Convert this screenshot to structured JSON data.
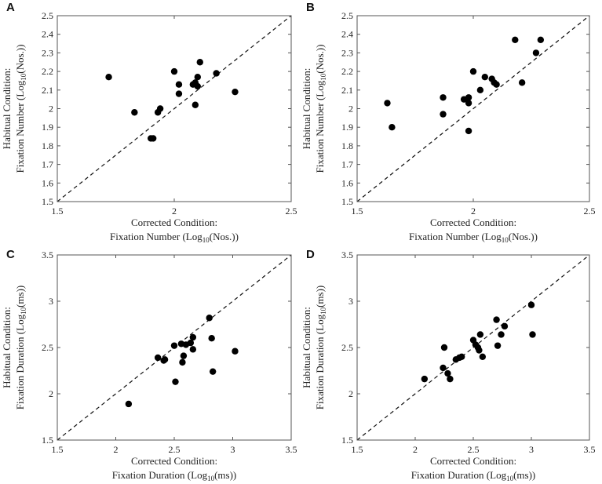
{
  "chart_data": [
    {
      "type": "scatter",
      "panel": "A",
      "xlabel_line1": "Corrected Condition:",
      "xlabel_line2": {
        "pre": "Fixation Number (Log",
        "sub": "10",
        "post": "(Nos.))"
      },
      "ylabel_line1": "Habitual Condition:",
      "ylabel_line2": {
        "pre": "Fixation Number (Log",
        "sub": "10",
        "post": "(Nos.))"
      },
      "xlim": [
        1.5,
        2.5
      ],
      "ylim": [
        1.5,
        2.5
      ],
      "xticks": [
        "1.5",
        "2",
        "2.5"
      ],
      "yticks": [
        "1.5",
        "1.6",
        "1.7",
        "1.8",
        "1.9",
        "2",
        "2.1",
        "2.2",
        "2.3",
        "2.4",
        "2.5"
      ],
      "identity_line": true,
      "points": [
        {
          "x": 1.72,
          "y": 2.17
        },
        {
          "x": 1.83,
          "y": 1.98
        },
        {
          "x": 1.9,
          "y": 1.84
        },
        {
          "x": 1.91,
          "y": 1.84
        },
        {
          "x": 1.93,
          "y": 1.98
        },
        {
          "x": 1.94,
          "y": 2.0
        },
        {
          "x": 2.0,
          "y": 2.2
        },
        {
          "x": 2.02,
          "y": 2.08
        },
        {
          "x": 2.02,
          "y": 2.13
        },
        {
          "x": 2.08,
          "y": 2.13
        },
        {
          "x": 2.09,
          "y": 2.02
        },
        {
          "x": 2.09,
          "y": 2.14
        },
        {
          "x": 2.1,
          "y": 2.17
        },
        {
          "x": 2.1,
          "y": 2.12
        },
        {
          "x": 2.11,
          "y": 2.25
        },
        {
          "x": 2.18,
          "y": 2.19
        },
        {
          "x": 2.26,
          "y": 2.09
        }
      ]
    },
    {
      "type": "scatter",
      "panel": "B",
      "xlabel_line1": "Corrected Condition:",
      "xlabel_line2": {
        "pre": "Fixation Number (Log",
        "sub": "10",
        "post": "(Nos.))"
      },
      "ylabel_line1": "Habitual Condition:",
      "ylabel_line2": {
        "pre": "Fixation Number (Log",
        "sub": "10",
        "post": "(Nos.))"
      },
      "xlim": [
        1.5,
        2.5
      ],
      "ylim": [
        1.5,
        2.5
      ],
      "xticks": [
        "1.5",
        "2",
        "2.5"
      ],
      "yticks": [
        "1.5",
        "1.6",
        "1.7",
        "1.8",
        "1.9",
        "2",
        "2.1",
        "2.2",
        "2.3",
        "2.4",
        "2.5"
      ],
      "identity_line": true,
      "points": [
        {
          "x": 1.63,
          "y": 2.03
        },
        {
          "x": 1.65,
          "y": 1.9
        },
        {
          "x": 1.87,
          "y": 2.06
        },
        {
          "x": 1.87,
          "y": 1.97
        },
        {
          "x": 1.96,
          "y": 2.05
        },
        {
          "x": 1.98,
          "y": 2.06
        },
        {
          "x": 1.98,
          "y": 2.03
        },
        {
          "x": 1.98,
          "y": 1.88
        },
        {
          "x": 2.0,
          "y": 2.2
        },
        {
          "x": 2.03,
          "y": 2.1
        },
        {
          "x": 2.05,
          "y": 2.17
        },
        {
          "x": 2.08,
          "y": 2.16
        },
        {
          "x": 2.09,
          "y": 2.14
        },
        {
          "x": 2.1,
          "y": 2.13
        },
        {
          "x": 2.18,
          "y": 2.37
        },
        {
          "x": 2.21,
          "y": 2.14
        },
        {
          "x": 2.27,
          "y": 2.3
        },
        {
          "x": 2.29,
          "y": 2.37
        }
      ]
    },
    {
      "type": "scatter",
      "panel": "C",
      "xlabel_line1": "Corrected Condition:",
      "xlabel_line2": {
        "pre": "Fixation Duration (Log",
        "sub": "10",
        "post": "(ms))"
      },
      "ylabel_line1": "Habitual Condition:",
      "ylabel_line2": {
        "pre": "Fixation Duration (Log",
        "sub": "10",
        "post": "(ms))"
      },
      "xlim": [
        1.5,
        3.5
      ],
      "ylim": [
        1.5,
        3.5
      ],
      "xticks": [
        "1.5",
        "2",
        "2.5",
        "3",
        "3.5"
      ],
      "yticks": [
        "1.5",
        "2",
        "2.5",
        "3",
        "3.5"
      ],
      "identity_line": true,
      "points": [
        {
          "x": 2.11,
          "y": 1.89
        },
        {
          "x": 2.36,
          "y": 2.39
        },
        {
          "x": 2.41,
          "y": 2.36
        },
        {
          "x": 2.42,
          "y": 2.37
        },
        {
          "x": 2.5,
          "y": 2.52
        },
        {
          "x": 2.51,
          "y": 2.13
        },
        {
          "x": 2.56,
          "y": 2.54
        },
        {
          "x": 2.57,
          "y": 2.34
        },
        {
          "x": 2.58,
          "y": 2.41
        },
        {
          "x": 2.6,
          "y": 2.53
        },
        {
          "x": 2.64,
          "y": 2.55
        },
        {
          "x": 2.66,
          "y": 2.61
        },
        {
          "x": 2.66,
          "y": 2.48
        },
        {
          "x": 2.8,
          "y": 2.82
        },
        {
          "x": 2.82,
          "y": 2.6
        },
        {
          "x": 2.83,
          "y": 2.24
        },
        {
          "x": 3.02,
          "y": 2.46
        }
      ]
    },
    {
      "type": "scatter",
      "panel": "D",
      "xlabel_line1": "Corrected Condition:",
      "xlabel_line2": {
        "pre": "Fixation Duration (Log",
        "sub": "10",
        "post": "(ms))"
      },
      "ylabel_line1": "Habitual Condition:",
      "ylabel_line2": {
        "pre": "Fixation Duration (Log",
        "sub": "10",
        "post": "(ms))"
      },
      "xlim": [
        1.5,
        3.5
      ],
      "ylim": [
        1.5,
        3.5
      ],
      "xticks": [
        "1.5",
        "2",
        "2.5",
        "3",
        "3.5"
      ],
      "yticks": [
        "1.5",
        "2",
        "2.5",
        "3",
        "3.5"
      ],
      "identity_line": true,
      "points": [
        {
          "x": 2.08,
          "y": 2.16
        },
        {
          "x": 2.24,
          "y": 2.28
        },
        {
          "x": 2.25,
          "y": 2.5
        },
        {
          "x": 2.28,
          "y": 2.22
        },
        {
          "x": 2.3,
          "y": 2.16
        },
        {
          "x": 2.35,
          "y": 2.37
        },
        {
          "x": 2.38,
          "y": 2.39
        },
        {
          "x": 2.4,
          "y": 2.4
        },
        {
          "x": 2.5,
          "y": 2.58
        },
        {
          "x": 2.52,
          "y": 2.53
        },
        {
          "x": 2.54,
          "y": 2.5
        },
        {
          "x": 2.55,
          "y": 2.47
        },
        {
          "x": 2.56,
          "y": 2.64
        },
        {
          "x": 2.58,
          "y": 2.4
        },
        {
          "x": 2.7,
          "y": 2.8
        },
        {
          "x": 2.71,
          "y": 2.52
        },
        {
          "x": 2.74,
          "y": 2.64
        },
        {
          "x": 2.77,
          "y": 2.73
        },
        {
          "x": 3.0,
          "y": 2.96
        },
        {
          "x": 3.01,
          "y": 2.64
        }
      ]
    }
  ]
}
